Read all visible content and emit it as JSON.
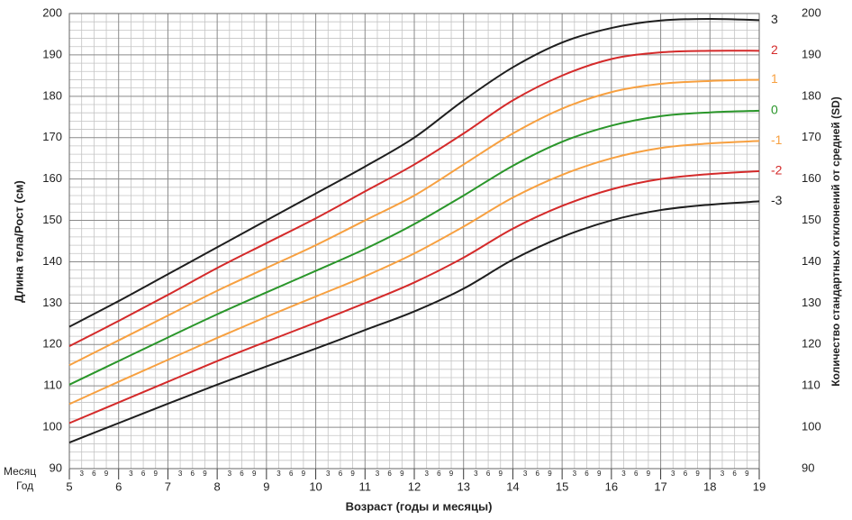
{
  "chart_data": {
    "type": "line",
    "ylabel": "Длина тела/Рост (см)",
    "y2label": "Количество стандартных отклонений от средней (SD)",
    "xlabel": "Возраст (годы и месяцы)",
    "x_row_labels": [
      "Месяц",
      "Год"
    ],
    "x": [
      5,
      6,
      7,
      8,
      9,
      10,
      11,
      12,
      13,
      14,
      15,
      16,
      17,
      18,
      19
    ],
    "xlim": [
      5,
      19
    ],
    "xticks": [
      5,
      6,
      7,
      8,
      9,
      10,
      11,
      12,
      13,
      14,
      15,
      16,
      17,
      18,
      19
    ],
    "x_minor_ticks": [
      {
        "value": 5.25,
        "label": "3"
      },
      {
        "value": 5.5,
        "label": "6"
      },
      {
        "value": 5.75,
        "label": "9"
      },
      {
        "value": 6.25,
        "label": "3"
      },
      {
        "value": 6.5,
        "label": "6"
      },
      {
        "value": 6.75,
        "label": "9"
      },
      {
        "value": 7.25,
        "label": "3"
      },
      {
        "value": 7.5,
        "label": "6"
      },
      {
        "value": 7.75,
        "label": "9"
      },
      {
        "value": 8.25,
        "label": "3"
      },
      {
        "value": 8.5,
        "label": "6"
      },
      {
        "value": 8.75,
        "label": "9"
      },
      {
        "value": 9.25,
        "label": "3"
      },
      {
        "value": 9.5,
        "label": "6"
      },
      {
        "value": 9.75,
        "label": "9"
      },
      {
        "value": 10.25,
        "label": "3"
      },
      {
        "value": 10.5,
        "label": "6"
      },
      {
        "value": 10.75,
        "label": "9"
      },
      {
        "value": 11.25,
        "label": "3"
      },
      {
        "value": 11.5,
        "label": "6"
      },
      {
        "value": 11.75,
        "label": "9"
      },
      {
        "value": 12.25,
        "label": "3"
      },
      {
        "value": 12.5,
        "label": "6"
      },
      {
        "value": 12.75,
        "label": "9"
      },
      {
        "value": 13.25,
        "label": "3"
      },
      {
        "value": 13.5,
        "label": "6"
      },
      {
        "value": 13.75,
        "label": "9"
      },
      {
        "value": 14.25,
        "label": "3"
      },
      {
        "value": 14.5,
        "label": "6"
      },
      {
        "value": 14.75,
        "label": "9"
      },
      {
        "value": 15.25,
        "label": "3"
      },
      {
        "value": 15.5,
        "label": "6"
      },
      {
        "value": 15.75,
        "label": "9"
      },
      {
        "value": 16.25,
        "label": "3"
      },
      {
        "value": 16.5,
        "label": "6"
      },
      {
        "value": 16.75,
        "label": "9"
      },
      {
        "value": 17.25,
        "label": "3"
      },
      {
        "value": 17.5,
        "label": "6"
      },
      {
        "value": 17.75,
        "label": "9"
      },
      {
        "value": 18.25,
        "label": "3"
      },
      {
        "value": 18.5,
        "label": "6"
      },
      {
        "value": 18.75,
        "label": "9"
      }
    ],
    "ylim": [
      90,
      200
    ],
    "yticks": [
      90,
      100,
      110,
      120,
      130,
      140,
      150,
      160,
      170,
      180,
      190,
      200
    ],
    "y_minor_ticks": [
      92,
      94,
      96,
      98,
      102,
      104,
      106,
      108,
      112,
      114,
      116,
      118,
      122,
      124,
      126,
      128,
      132,
      134,
      136,
      138,
      142,
      144,
      146,
      148,
      152,
      154,
      156,
      158,
      162,
      164,
      166,
      168,
      172,
      174,
      176,
      178,
      182,
      184,
      186,
      188,
      192,
      194,
      196,
      198
    ],
    "grid": true,
    "series": [
      {
        "name": "3",
        "color": "#1e1e1e",
        "values": [
          124.3,
          130.5,
          137,
          143.5,
          150,
          156.5,
          163,
          170,
          179,
          187,
          193,
          196.5,
          198.3,
          198.7,
          198.4
        ]
      },
      {
        "name": "2",
        "color": "#d42a2a",
        "values": [
          119.6,
          125.7,
          132,
          138.5,
          144.5,
          150.5,
          157,
          163.5,
          171,
          179,
          185,
          189,
          190.6,
          191,
          191
        ]
      },
      {
        "name": "1",
        "color": "#f7a040",
        "values": [
          115,
          121,
          127,
          133,
          138.5,
          144,
          150,
          156,
          163.5,
          171,
          177,
          181,
          183,
          183.7,
          184
        ]
      },
      {
        "name": "0",
        "color": "#2a962a",
        "values": [
          110.3,
          116,
          121.7,
          127.3,
          132.6,
          137.8,
          143.1,
          149.1,
          156,
          163.2,
          169,
          172.9,
          175.2,
          176.1,
          176.5
        ]
      },
      {
        "name": "-1",
        "color": "#f7a040",
        "values": [
          105.6,
          111,
          116.3,
          121.6,
          126.7,
          131.6,
          136.5,
          142,
          148.5,
          155.5,
          161,
          165,
          167.5,
          168.6,
          169.2
        ]
      },
      {
        "name": "-2",
        "color": "#d42a2a",
        "values": [
          101,
          106,
          111,
          116,
          120.7,
          125.3,
          130,
          135,
          141,
          148,
          153.5,
          157.5,
          160,
          161.2,
          161.9
        ]
      },
      {
        "name": "-3",
        "color": "#1e1e1e",
        "values": [
          96.3,
          101,
          105.7,
          110.3,
          114.7,
          119,
          123.5,
          128,
          133.5,
          140.5,
          146,
          150,
          152.5,
          153.8,
          154.6
        ]
      }
    ]
  }
}
